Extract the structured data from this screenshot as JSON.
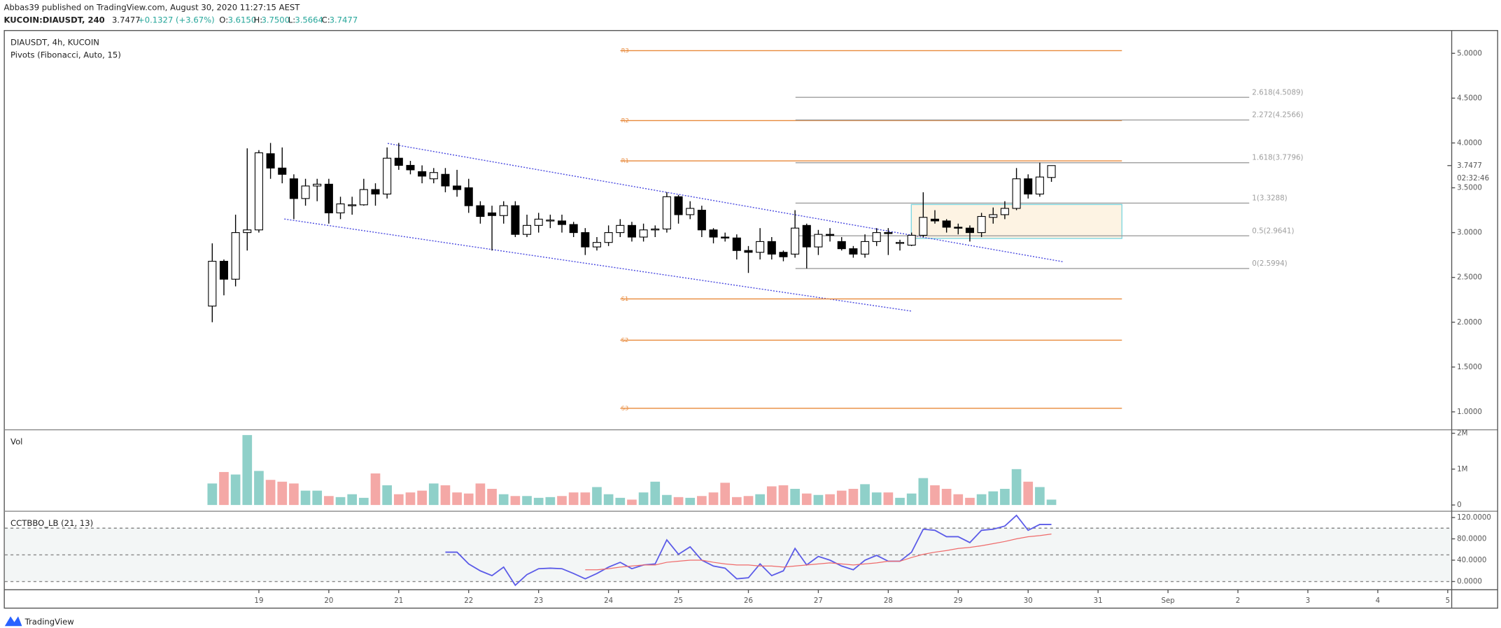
{
  "header": {
    "line1": "Abbas39 published on TradingView.com, August 30, 2020 11:27:15 AEST",
    "symbol": "KUCOIN:DIAUSDT, 240",
    "price": "3.7477",
    "change": "+0.1327 (+3.67%)",
    "ohlc": [
      "O:",
      "3.6150",
      "H:",
      "3.7500",
      "L:",
      "3.5664",
      "C:",
      "3.7477"
    ]
  },
  "footer": "TradingView",
  "chart_data": [
    {
      "type": "candlestick",
      "title": "DIAUSDT, 4h, KUCOIN",
      "subtitle": "Pivots (Fibonacci, Auto, 15)",
      "colors": {
        "up": "#ffffff",
        "down": "#000000",
        "pivot": "#e8893a",
        "fib": "#9e9e9e"
      },
      "x": [
        0,
        1,
        2,
        3,
        4,
        5,
        6,
        7,
        8,
        9,
        10,
        11,
        12,
        13,
        14,
        15,
        16,
        17,
        18,
        19,
        20,
        21,
        22,
        23,
        24,
        25,
        26,
        27,
        28,
        29,
        30,
        31,
        32,
        33,
        34,
        35,
        36,
        37,
        38,
        39,
        40,
        41,
        42,
        43,
        44,
        45,
        46,
        47,
        48,
        49,
        50,
        51,
        52,
        53,
        54,
        55,
        56,
        57,
        58,
        59,
        60,
        61,
        62,
        63,
        64,
        65,
        66,
        67,
        68,
        69,
        70,
        71,
        72
      ],
      "open": [
        2.18,
        2.68,
        2.48,
        3.0,
        3.03,
        3.88,
        3.72,
        3.6,
        3.38,
        3.52,
        3.54,
        3.22,
        3.3,
        3.31,
        3.48,
        3.43,
        3.83,
        3.75,
        3.68,
        3.6,
        3.65,
        3.52,
        3.5,
        3.3,
        3.22,
        3.19,
        3.3,
        2.98,
        3.08,
        3.13,
        3.13,
        3.09,
        3.0,
        2.84,
        2.89,
        3.0,
        3.08,
        2.95,
        3.03,
        3.04,
        3.4,
        3.2,
        3.25,
        3.03,
        2.95,
        2.94,
        2.8,
        2.78,
        2.9,
        2.78,
        2.76,
        3.08,
        2.84,
        2.98,
        2.9,
        2.82,
        2.76,
        2.9,
        3.0,
        2.88,
        2.86,
        2.97,
        3.15,
        3.13,
        3.06,
        3.05,
        3.0,
        3.17,
        3.2,
        3.27,
        3.6,
        3.43,
        3.615
      ],
      "high": [
        2.88,
        2.7,
        3.2,
        3.94,
        3.92,
        4.0,
        3.95,
        3.65,
        3.6,
        3.6,
        3.6,
        3.4,
        3.4,
        3.6,
        3.55,
        3.95,
        4.0,
        3.8,
        3.75,
        3.72,
        3.72,
        3.7,
        3.6,
        3.35,
        3.3,
        3.35,
        3.35,
        3.2,
        3.22,
        3.2,
        3.2,
        3.12,
        3.05,
        2.95,
        3.08,
        3.15,
        3.12,
        3.1,
        3.08,
        3.45,
        3.42,
        3.35,
        3.3,
        3.05,
        3.0,
        2.98,
        2.85,
        3.05,
        2.95,
        2.8,
        3.25,
        3.1,
        3.03,
        3.05,
        2.95,
        2.85,
        2.98,
        3.05,
        3.05,
        2.92,
        3.0,
        3.45,
        3.25,
        3.15,
        3.1,
        3.08,
        3.22,
        3.28,
        3.35,
        3.72,
        3.65,
        3.78,
        3.75
      ],
      "low": [
        2.0,
        2.3,
        2.4,
        2.8,
        3.0,
        3.6,
        3.55,
        3.15,
        3.3,
        3.35,
        3.1,
        3.15,
        3.2,
        3.3,
        3.3,
        3.38,
        3.7,
        3.65,
        3.55,
        3.55,
        3.45,
        3.4,
        3.22,
        3.1,
        2.8,
        3.1,
        2.95,
        2.95,
        3.0,
        3.05,
        3.0,
        2.95,
        2.75,
        2.8,
        2.85,
        2.95,
        2.9,
        2.9,
        2.95,
        3.0,
        3.1,
        3.15,
        2.95,
        2.88,
        2.9,
        2.7,
        2.55,
        2.7,
        2.7,
        2.68,
        2.72,
        2.6,
        2.75,
        2.9,
        2.8,
        2.72,
        2.72,
        2.85,
        2.75,
        2.8,
        2.85,
        2.95,
        3.1,
        3.0,
        2.98,
        2.9,
        2.95,
        3.1,
        3.15,
        3.25,
        3.38,
        3.4,
        3.5664
      ],
      "close": [
        2.68,
        2.48,
        3.0,
        3.03,
        3.89,
        3.72,
        3.65,
        3.38,
        3.52,
        3.54,
        3.22,
        3.32,
        3.31,
        3.48,
        3.43,
        3.83,
        3.75,
        3.7,
        3.63,
        3.67,
        3.52,
        3.48,
        3.3,
        3.18,
        3.19,
        3.3,
        2.98,
        3.08,
        3.15,
        3.14,
        3.09,
        3.0,
        2.84,
        2.89,
        3.0,
        3.08,
        2.95,
        3.03,
        3.04,
        3.4,
        3.2,
        3.27,
        3.03,
        2.95,
        2.94,
        2.8,
        2.78,
        2.9,
        2.76,
        2.73,
        3.05,
        2.84,
        2.98,
        2.97,
        2.82,
        2.76,
        2.9,
        3.0,
        2.99,
        2.89,
        2.97,
        3.17,
        3.13,
        3.06,
        3.05,
        3.0,
        3.18,
        3.2,
        3.27,
        3.6,
        3.43,
        3.62,
        3.7477
      ],
      "xlim": [
        -17.8,
        106.3
      ],
      "xticks": [
        {
          "value": 4,
          "label": "19"
        },
        {
          "value": 10,
          "label": "20"
        },
        {
          "value": 16,
          "label": "21"
        },
        {
          "value": 22,
          "label": "22"
        },
        {
          "value": 28,
          "label": "23"
        },
        {
          "value": 34,
          "label": "24"
        },
        {
          "value": 40,
          "label": "25"
        },
        {
          "value": 46,
          "label": "26"
        },
        {
          "value": 52,
          "label": "27"
        },
        {
          "value": 58,
          "label": "28"
        },
        {
          "value": 64,
          "label": "29"
        },
        {
          "value": 70,
          "label": "30"
        },
        {
          "value": 76,
          "label": "31"
        },
        {
          "value": 82,
          "label": "Sep"
        },
        {
          "value": 88,
          "label": "2"
        },
        {
          "value": 94,
          "label": "3"
        },
        {
          "value": 100,
          "label": "4"
        },
        {
          "value": 106,
          "label": "5"
        }
      ],
      "ylim": [
        0.805,
        5.249
      ],
      "yticks": [
        {
          "value": 5,
          "label": "5.0000"
        },
        {
          "value": 4.5,
          "label": "4.5000"
        },
        {
          "value": 4,
          "label": "4.0000"
        },
        {
          "value": 3.5,
          "label": "3.5000"
        },
        {
          "value": 3,
          "label": "3.0000"
        },
        {
          "value": 2.5,
          "label": "2.5000"
        },
        {
          "value": 2,
          "label": "2.0000"
        },
        {
          "value": 1.5,
          "label": "1.5000"
        },
        {
          "value": 1,
          "label": "1.0000"
        }
      ],
      "last_price": {
        "value": 3.7477,
        "label": "3.7477"
      },
      "countdown": "02:32:46",
      "pivots": [
        {
          "name": "R3",
          "value": 5.03
        },
        {
          "name": "R2",
          "value": 4.25
        },
        {
          "name": "R1",
          "value": 3.8
        },
        {
          "name": "S1",
          "value": 2.26
        },
        {
          "name": "S2",
          "value": 1.8
        },
        {
          "name": "S3",
          "value": 1.04
        }
      ],
      "fib_levels": [
        {
          "value": 4.5089,
          "label": "2.618(4.5089)"
        },
        {
          "value": 4.2566,
          "label": "2.272(4.2566)"
        },
        {
          "value": 3.7796,
          "label": "1.618(3.7796)"
        },
        {
          "value": 3.3288,
          "label": "1(3.3288)"
        },
        {
          "value": 2.9641,
          "label": "0.5(2.9641)"
        },
        {
          "value": 2.5994,
          "label": "0(2.5994)"
        }
      ]
    },
    {
      "type": "bar",
      "title": "Vol",
      "colors": {
        "up": "#8fd0c9",
        "down": "#f4a8a6"
      },
      "values": [
        0.6,
        0.92,
        0.85,
        1.95,
        0.95,
        0.7,
        0.65,
        0.6,
        0.4,
        0.4,
        0.25,
        0.22,
        0.3,
        0.2,
        0.88,
        0.55,
        0.3,
        0.35,
        0.4,
        0.6,
        0.55,
        0.35,
        0.32,
        0.6,
        0.45,
        0.3,
        0.25,
        0.25,
        0.2,
        0.22,
        0.25,
        0.35,
        0.35,
        0.5,
        0.3,
        0.2,
        0.15,
        0.35,
        0.65,
        0.28,
        0.22,
        0.2,
        0.25,
        0.35,
        0.62,
        0.22,
        0.25,
        0.3,
        0.52,
        0.55,
        0.45,
        0.32,
        0.28,
        0.3,
        0.4,
        0.45,
        0.58,
        0.35,
        0.35,
        0.2,
        0.32,
        0.75,
        0.55,
        0.45,
        0.3,
        0.2,
        0.3,
        0.38,
        0.45,
        1.0,
        0.65,
        0.5,
        0.15
      ],
      "ylim": [
        -0.16,
        2.11
      ],
      "yticks": [
        0,
        {
          "value": 1,
          "label": "1M"
        },
        {
          "value": 2,
          "label": "2M"
        }
      ]
    },
    {
      "type": "line",
      "title": "CCTBBO_LB (21, 13)",
      "levels": [
        100,
        50,
        0
      ],
      "series": [
        {
          "color": "#5b5be8",
          "values": [
            null,
            null,
            null,
            null,
            null,
            null,
            null,
            null,
            null,
            null,
            null,
            null,
            null,
            null,
            null,
            null,
            null,
            null,
            null,
            null,
            55,
            55,
            33,
            20,
            11,
            27,
            -7,
            13,
            24,
            25,
            24,
            15,
            5,
            15,
            27,
            36,
            24,
            31,
            33,
            78,
            51,
            65,
            40,
            29,
            25,
            5,
            7,
            33,
            11,
            20,
            62,
            31,
            47,
            40,
            29,
            22,
            40,
            49,
            38,
            38,
            55,
            98,
            96,
            84,
            84,
            73,
            96,
            98,
            104,
            124,
            96,
            107,
            107
          ]
        },
        {
          "color": "#ef6b6b",
          "values": [
            null,
            null,
            null,
            null,
            null,
            null,
            null,
            null,
            null,
            null,
            null,
            null,
            null,
            null,
            null,
            null,
            null,
            null,
            null,
            null,
            null,
            null,
            null,
            null,
            null,
            null,
            null,
            null,
            null,
            null,
            null,
            null,
            22,
            22,
            24,
            27,
            29,
            31,
            31,
            36,
            38,
            40,
            40,
            36,
            33,
            31,
            31,
            29,
            29,
            27,
            29,
            31,
            33,
            35,
            33,
            31,
            33,
            35,
            38,
            38,
            45,
            51,
            55,
            58,
            62,
            64,
            67,
            71,
            75,
            80,
            84,
            86,
            89
          ]
        }
      ],
      "ylim": [
        -14.5,
        132.7
      ],
      "yticks": [
        {
          "value": 120,
          "label": "120.0000"
        },
        {
          "value": 80,
          "label": "80.0000"
        },
        {
          "value": 40,
          "label": "40.0000"
        },
        {
          "value": 0,
          "label": "0.0000"
        }
      ]
    }
  ]
}
